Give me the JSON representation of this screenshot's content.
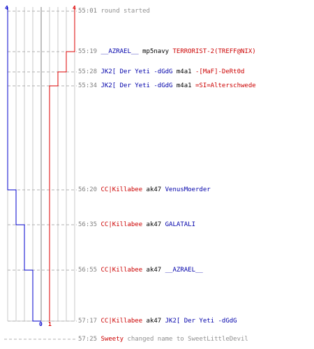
{
  "score": {
    "blue_start": "4",
    "red_start": "4",
    "blue_end": "0",
    "red_end": "1"
  },
  "colors": {
    "blue": "#0000cc",
    "red": "#dd0000",
    "grid": "#c8c8c8",
    "dash": "#b0b0b0",
    "time": "#808080"
  },
  "events": [
    {
      "time": "55:01",
      "segments": [
        {
          "text": "round started",
          "color": "grey"
        }
      ]
    },
    {
      "time": "55:19",
      "segments": [
        {
          "text": "__AZRAEL__",
          "color": "blue"
        },
        {
          "text": " mp5navy ",
          "color": "black"
        },
        {
          "text": "TERRORIST-2(TREFF@NIX)",
          "color": "red"
        }
      ]
    },
    {
      "time": "55:28",
      "segments": [
        {
          "text": "JK2[ Der Yeti -dGdG",
          "color": "blue"
        },
        {
          "text": " m4a1 ",
          "color": "black"
        },
        {
          "text": "-[MaF]-DeRt0d",
          "color": "red"
        }
      ]
    },
    {
      "time": "55:34",
      "segments": [
        {
          "text": "JK2[ Der Yeti -dGdG",
          "color": "blue"
        },
        {
          "text": " m4a1 ",
          "color": "black"
        },
        {
          "text": "=SI=Alterschwede",
          "color": "red"
        }
      ]
    },
    {
      "time": "56:20",
      "segments": [
        {
          "text": "CC|Killabee",
          "color": "red"
        },
        {
          "text": " ak47 ",
          "color": "black"
        },
        {
          "text": "VenusMoerder",
          "color": "blue"
        }
      ]
    },
    {
      "time": "56:35",
      "segments": [
        {
          "text": "CC|Killabee",
          "color": "red"
        },
        {
          "text": " ak47 ",
          "color": "black"
        },
        {
          "text": "GALATALI",
          "color": "blue"
        }
      ]
    },
    {
      "time": "56:55",
      "segments": [
        {
          "text": "CC|Killabee",
          "color": "red"
        },
        {
          "text": " ak47 ",
          "color": "black"
        },
        {
          "text": "__AZRAEL__",
          "color": "blue"
        }
      ]
    },
    {
      "time": "57:17",
      "segments": [
        {
          "text": "CC|Killabee",
          "color": "red"
        },
        {
          "text": " ak47 ",
          "color": "black"
        },
        {
          "text": "JK2[ Der Yeti -dGdG",
          "color": "blue"
        }
      ]
    },
    {
      "time": "57:25",
      "segments": [
        {
          "text": "Sweety",
          "color": "red"
        },
        {
          "text": " changed name to SweetLittleDevil",
          "color": "grey"
        }
      ]
    }
  ]
}
